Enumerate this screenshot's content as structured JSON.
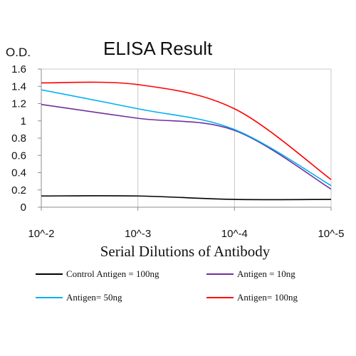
{
  "chart_data": {
    "type": "line",
    "title": "ELISA Result",
    "ylabel": "O.D.",
    "xlabel": "Serial Dilutions of Antibody",
    "x_scale": "log",
    "x": [
      0.01,
      0.001,
      0.0001,
      1e-05
    ],
    "x_tick_labels": [
      "10^-2",
      "10^-3",
      "10^-4",
      "10^-5"
    ],
    "ylim": [
      0,
      1.6
    ],
    "y_ticks": [
      "0",
      "0.2",
      "0.4",
      "0.6",
      "0.8",
      "1",
      "1.2",
      "1.4",
      "1.6"
    ],
    "grid": "vertical",
    "legend_position": "bottom",
    "series": [
      {
        "name": "Control Antigen = 100ng",
        "color": "#000000",
        "points": [
          [
            0.01,
            0.13
          ],
          [
            0.001,
            0.13
          ],
          [
            0.0001,
            0.09
          ],
          [
            1e-05,
            0.09
          ]
        ]
      },
      {
        "name": "Antigen = 10ng",
        "color": "#7030a0",
        "points": [
          [
            0.01,
            1.19
          ],
          [
            0.001,
            1.03
          ],
          [
            0.0001,
            0.89
          ],
          [
            1e-05,
            0.21
          ]
        ]
      },
      {
        "name": "Antigen= 50ng",
        "color": "#00b0f0",
        "points": [
          [
            0.01,
            1.36
          ],
          [
            0.001,
            1.14
          ],
          [
            0.0001,
            0.9
          ],
          [
            1e-05,
            0.25
          ]
        ]
      },
      {
        "name": "Antigen= 100ng",
        "color": "#ff0000",
        "points": [
          [
            0.01,
            1.44
          ],
          [
            0.001,
            1.42
          ],
          [
            0.0001,
            1.14
          ],
          [
            1e-05,
            0.32
          ]
        ]
      }
    ]
  }
}
